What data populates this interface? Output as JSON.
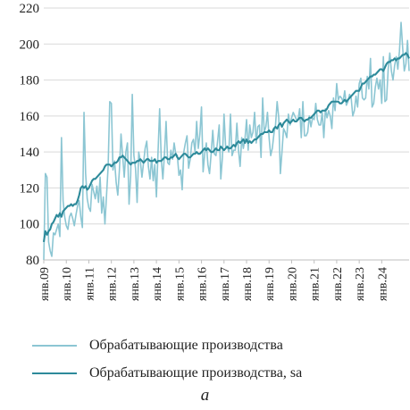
{
  "chart_data": {
    "type": "line",
    "title": "",
    "xlabel": "",
    "ylabel": "",
    "ylim": [
      80,
      220
    ],
    "yticks": [
      80,
      100,
      120,
      140,
      160,
      180,
      200,
      220
    ],
    "xticks": [
      "янв.09",
      "янв.10",
      "янв.11",
      "янв.12",
      "янв.13",
      "янв.14",
      "янв.15",
      "янв.16",
      "янв.17",
      "янв.18",
      "янв.19",
      "янв.20",
      "янв.21",
      "янв.22",
      "янв.23",
      "янв.24"
    ],
    "grid": "horizontal",
    "legend_position": "bottom",
    "series": [
      {
        "name": "Обрабатывающие производства",
        "color": "#8cc6d3",
        "values": [
          80,
          128,
          126,
          90,
          85,
          82,
          95,
          94,
          97,
          100,
          93,
          148,
          113,
          104,
          99,
          97,
          104,
          106,
          103,
          99,
          105,
          110,
          113,
          104,
          98,
          162,
          128,
          114,
          109,
          107,
          122,
          118,
          114,
          121,
          112,
          126,
          106,
          115,
          100,
          116,
          132,
          168,
          167,
          130,
          135,
          123,
          116,
          130,
          150,
          138,
          126,
          140,
          145,
          111,
          127,
          172,
          138,
          131,
          112,
          140,
          135,
          126,
          134,
          142,
          146,
          132,
          125,
          137,
          124,
          133,
          115,
          140,
          164,
          136,
          125,
          139,
          157,
          134,
          133,
          141,
          136,
          145,
          139,
          138,
          127,
          130,
          119,
          140,
          145,
          149,
          131,
          136,
          145,
          147,
          140,
          157,
          142,
          150,
          165,
          129,
          139,
          145,
          133,
          128,
          139,
          152,
          139,
          138,
          146,
          155,
          125,
          137,
          161,
          143,
          143,
          140,
          161,
          138,
          141,
          141,
          156,
          141,
          132,
          148,
          142,
          147,
          158,
          141,
          155,
          148,
          151,
          162,
          145,
          154,
          155,
          137,
          170,
          151,
          154,
          162,
          148,
          138,
          142,
          150,
          155,
          168,
          159,
          128,
          140,
          153,
          151,
          148,
          161,
          155,
          159,
          162,
          160,
          158,
          158,
          164,
          148,
          168,
          149,
          149,
          151,
          160,
          154,
          159,
          158,
          167,
          158,
          155,
          155,
          162,
          148,
          164,
          159,
          163,
          160,
          153,
          170,
          163,
          178,
          169,
          171,
          170,
          168,
          174,
          166,
          168,
          172,
          170,
          160,
          163,
          171,
          165,
          178,
          181,
          170,
          169,
          170,
          182,
          175,
          192,
          165,
          167,
          176,
          181,
          175,
          180,
          167,
          193,
          168,
          169,
          186,
          195,
          185,
          180,
          188,
          193,
          186,
          196,
          212,
          198,
          185,
          189,
          202,
          185
        ]
      },
      {
        "name": "Обрабатывающие производства, sa",
        "color": "#2d8a9a",
        "values": [
          90,
          96,
          94,
          96,
          97,
          100,
          101,
          103,
          105,
          104,
          106,
          104,
          107,
          108,
          109,
          110,
          110,
          111,
          110,
          111,
          111,
          113,
          116,
          120,
          121,
          120,
          121,
          119,
          120,
          122,
          124,
          125,
          125,
          126,
          127,
          128,
          129,
          130,
          132,
          133,
          133,
          133,
          132,
          133,
          134,
          134,
          135,
          137,
          137,
          138,
          137,
          136,
          135,
          134,
          133,
          134,
          134,
          134,
          135,
          135,
          136,
          135,
          134,
          135,
          136,
          136,
          135,
          135,
          135,
          136,
          134,
          135,
          135,
          135,
          136,
          137,
          137,
          136,
          136,
          137,
          137,
          138,
          139,
          137,
          136,
          137,
          138,
          139,
          139,
          138,
          137,
          137,
          138,
          139,
          139,
          140,
          139,
          139,
          140,
          141,
          142,
          141,
          142,
          141,
          140,
          140,
          141,
          142,
          141,
          141,
          143,
          142,
          141,
          142,
          143,
          142,
          142,
          143,
          144,
          143,
          145,
          146,
          145,
          146,
          147,
          145,
          147,
          145,
          146,
          145,
          146,
          147,
          147,
          148,
          149,
          150,
          150,
          151,
          151,
          151,
          152,
          151,
          151,
          153,
          154,
          153,
          155,
          156,
          154,
          156,
          157,
          158,
          157,
          156,
          157,
          158,
          157,
          157,
          158,
          159,
          159,
          158,
          157,
          158,
          158,
          159,
          159,
          160,
          161,
          162,
          163,
          163,
          162,
          163,
          163,
          163,
          164,
          166,
          167,
          168,
          168,
          168,
          168,
          168,
          167,
          167,
          168,
          169,
          168,
          169,
          170,
          171,
          172,
          173,
          174,
          174,
          174,
          176,
          178,
          178,
          179,
          180,
          181,
          182,
          182,
          183,
          183,
          184,
          185,
          186,
          186,
          185,
          187,
          189,
          190,
          190,
          191,
          191,
          192,
          191,
          192,
          192,
          193,
          194,
          194,
          195,
          194,
          192
        ]
      }
    ]
  },
  "caption": "а"
}
